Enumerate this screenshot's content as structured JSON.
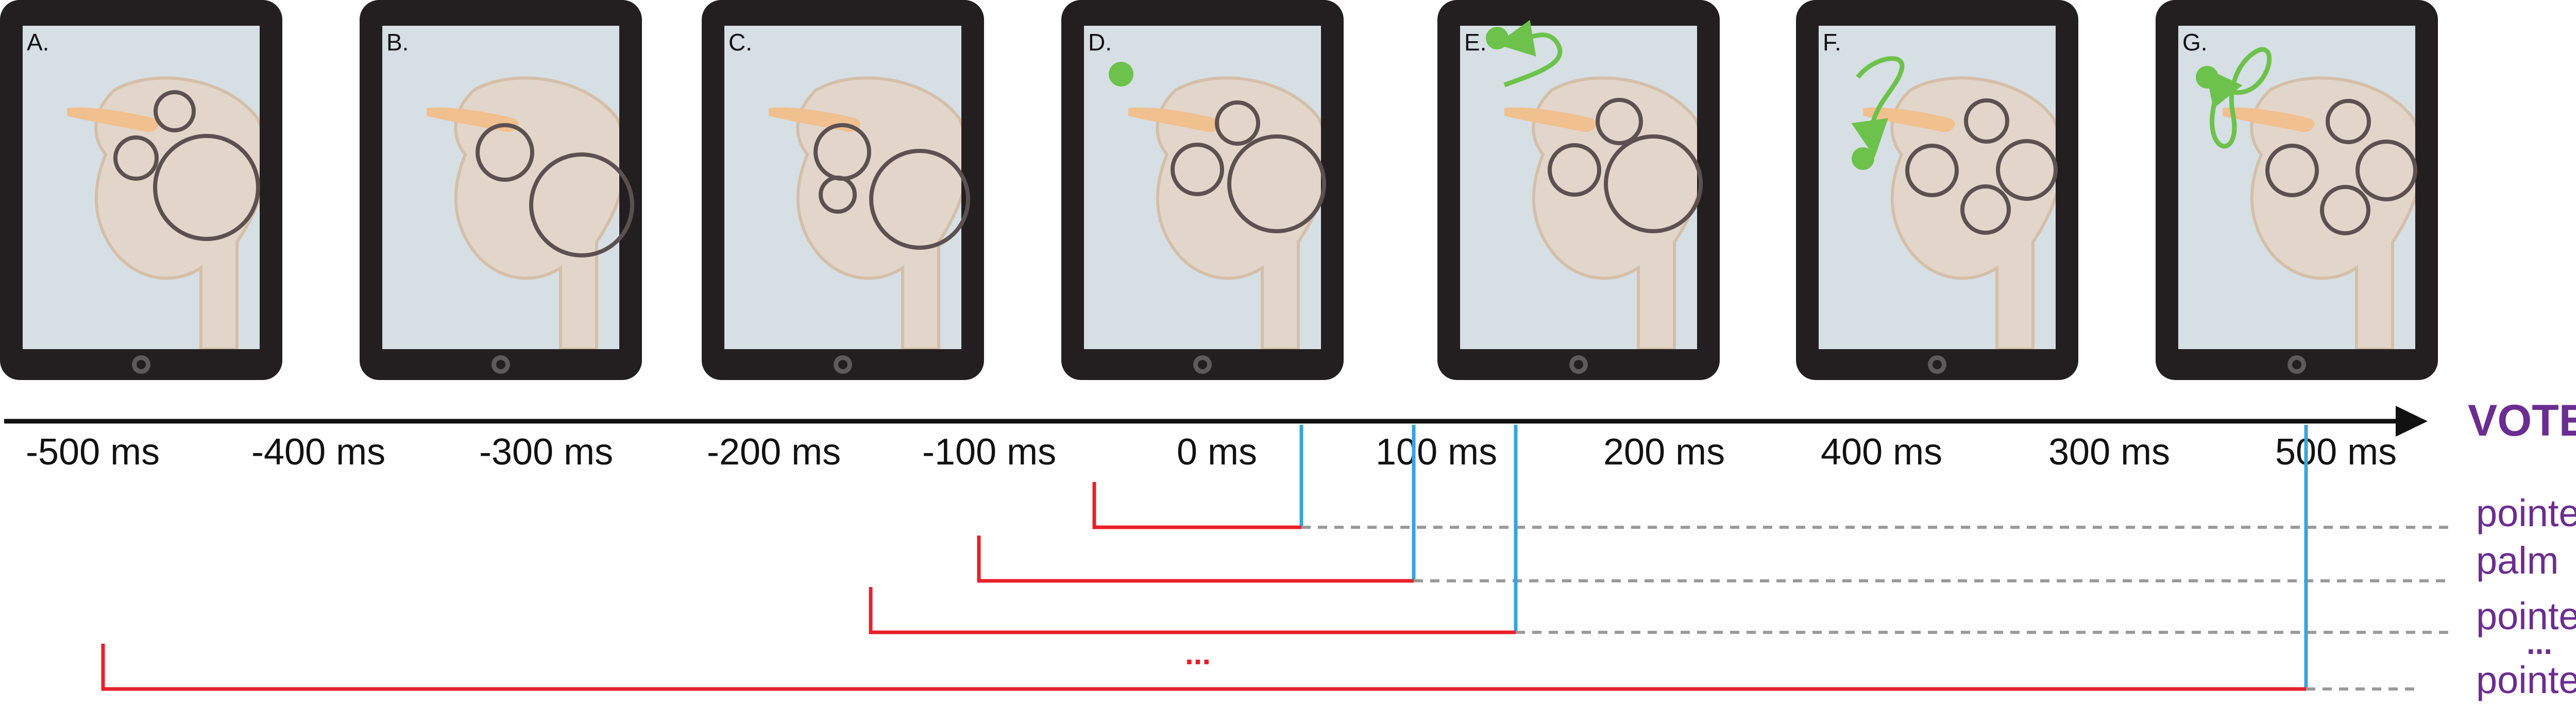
{
  "panels": [
    {
      "letter": "A."
    },
    {
      "letter": "B."
    },
    {
      "letter": "C."
    },
    {
      "letter": "D."
    },
    {
      "letter": "E."
    },
    {
      "letter": "F."
    },
    {
      "letter": "G."
    }
  ],
  "timeline": {
    "ticks": [
      "-500 ms",
      "-400 ms",
      "-300 ms",
      "-200 ms",
      "-100 ms",
      "0 ms",
      "100 ms",
      "200 ms",
      "400 ms",
      "300 ms",
      "500 ms"
    ],
    "end_label": "VOTE"
  },
  "windows": [
    {
      "result": "pointer"
    },
    {
      "result": "palm"
    },
    {
      "result": "pointer"
    },
    {
      "result": "pointer"
    }
  ],
  "ellipsis_main": "...",
  "ellipsis_result": "...",
  "colors": {
    "window": "#e8202a",
    "marker": "#3aa3dc",
    "dashed": "#9a9a9a",
    "vote": "#6b2d91",
    "touch_point": "#6cc24a",
    "tablet": "#231f20",
    "screen": "#d6dfe4"
  },
  "icons": [
    "tablet-icon",
    "hand-icon",
    "touch-circle-icon",
    "gesture-path-icon",
    "home-button-icon",
    "arrowhead-icon"
  ]
}
